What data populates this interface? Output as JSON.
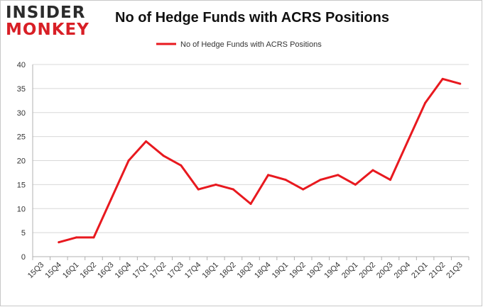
{
  "logo": {
    "line1": "INSIDER",
    "line2": "MONKEY"
  },
  "chart_data": {
    "type": "line",
    "title": "No of Hedge Funds with ACRS Positions",
    "xlabel": "",
    "ylabel": "",
    "ylim": [
      0,
      40
    ],
    "yticks": [
      0,
      5,
      10,
      15,
      20,
      25,
      30,
      35,
      40
    ],
    "grid": true,
    "legend_position": "top-center",
    "colors": {
      "series": "#e8191f",
      "grid": "#d8d8d8",
      "axis": "#b0b0b0"
    },
    "categories": [
      "15Q3",
      "15Q4",
      "16Q1",
      "16Q2",
      "16Q3",
      "16Q4",
      "17Q1",
      "17Q2",
      "17Q3",
      "17Q4",
      "18Q1",
      "18Q2",
      "18Q3",
      "18Q4",
      "19Q1",
      "19Q2",
      "19Q3",
      "19Q4",
      "20Q1",
      "20Q2",
      "20Q3",
      "20Q4",
      "21Q1",
      "21Q2",
      "21Q3"
    ],
    "series": [
      {
        "name": "No of Hedge Funds with ACRS Positions",
        "values": [
          null,
          3,
          4,
          4,
          12,
          20,
          24,
          21,
          19,
          14,
          15,
          14,
          11,
          17,
          16,
          14,
          16,
          17,
          15,
          18,
          16,
          24,
          32,
          37,
          36
        ]
      }
    ]
  }
}
